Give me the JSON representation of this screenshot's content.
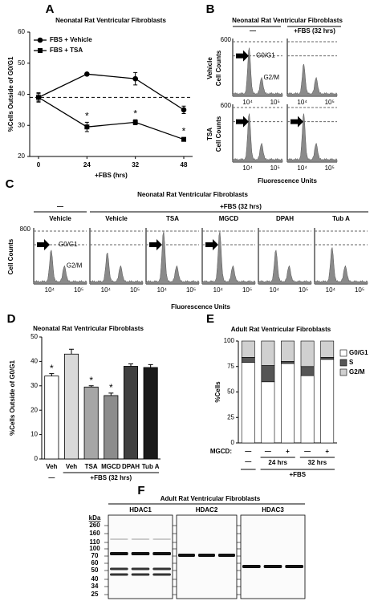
{
  "panel_labels": [
    "A",
    "B",
    "C",
    "D",
    "E",
    "F"
  ],
  "chart_data": [
    {
      "type": "line",
      "title": "Neonatal Rat Ventricular Fibroblasts",
      "categories": [
        "0",
        "24",
        "32",
        "48"
      ],
      "xlabel": "+FBS (hrs)",
      "ylabel": "%Cells Outside of G0/G1",
      "series": [
        {
          "name": "FBS + Vehicle",
          "color": "#000000",
          "marker": "circle",
          "values": [
            39,
            46.5,
            45,
            35
          ],
          "errors": [
            1.2,
            0,
            2,
            1.2
          ]
        },
        {
          "name": "FBS + TSA",
          "color": "#000000",
          "marker": "square",
          "values": [
            39,
            29.5,
            31,
            25.5
          ],
          "errors": [
            1.5,
            1.5,
            0.8,
            0.6
          ]
        }
      ],
      "ylim": [
        20,
        60
      ],
      "yticks": [
        20,
        30,
        40,
        50,
        60
      ],
      "reference_line": 39,
      "annotations": [
        "*",
        "*",
        "*"
      ]
    },
    {
      "type": "bar",
      "title": "Neonatal Rat Ventricular Fibroblasts",
      "categories": [
        "Veh",
        "Veh",
        "TSA",
        "MGCD",
        "DPAH",
        "Tub A"
      ],
      "values": [
        34,
        43,
        29.5,
        26,
        38,
        37.5
      ],
      "errors": [
        1,
        2,
        0.5,
        1,
        1,
        1.2
      ],
      "colors": [
        "#ffffff",
        "#d9d9d9",
        "#a6a6a6",
        "#8c8c8c",
        "#404040",
        "#1a1a1a"
      ],
      "ylabel": "%Cells Outside of G0/G1",
      "ylim": [
        0,
        50
      ],
      "yticks": [
        0,
        10,
        20,
        30,
        40,
        50
      ],
      "group_labels": [
        "—",
        "+FBS (32 hrs)"
      ],
      "annotations": [
        "*",
        "*",
        "*"
      ]
    },
    {
      "type": "stacked_bar",
      "title": "Adult Rat Ventricular Fibroblasts",
      "category_label": "MGCD:",
      "categories": [
        "—",
        "—",
        "+",
        "—",
        "+"
      ],
      "time_labels": [
        "24 hrs",
        "32 hrs"
      ],
      "group_labels": [
        "—",
        "+FBS"
      ],
      "ylabel": "%Cells",
      "ylim": [
        0,
        100
      ],
      "yticks": [
        0,
        25,
        50,
        75,
        100
      ],
      "series": [
        {
          "name": "G0/G1",
          "color": "#ffffff",
          "values": [
            79,
            60,
            78,
            66,
            82
          ]
        },
        {
          "name": "S",
          "color": "#555555",
          "values": [
            5,
            16,
            2,
            9,
            2
          ]
        },
        {
          "name": "G2/M",
          "color": "#d0d0d0",
          "values": [
            16,
            24,
            20,
            25,
            16
          ]
        }
      ]
    }
  ],
  "panel_b": {
    "title": "Neonatal Rat Ventricular Fibroblasts",
    "column_headers": [
      "—",
      "+FBS (32 hrs)"
    ],
    "row_labels": [
      "Vehicle",
      "TSA"
    ],
    "ylabel": "Cell Counts",
    "yticks": [
      600
    ],
    "xticks": [
      {
        "value": 10000,
        "label": "10⁴"
      },
      {
        "value": 100000,
        "label": "10⁵"
      }
    ],
    "xlabel": "Fluorescence Units",
    "phase_labels": [
      "G0/G1",
      "G2/M"
    ]
  },
  "panel_c": {
    "title": "Neonatal Rat Ventricular Fibroblasts",
    "group_labels": [
      "—",
      "+FBS (32 hrs)"
    ],
    "treatments": [
      "Vehicle",
      "Vehicle",
      "TSA",
      "MGCD",
      "DPAH",
      "Tub A"
    ],
    "ylabel": "Cell Counts",
    "yticks": [
      800
    ],
    "xticks": [
      {
        "value": 10000,
        "label": "10⁴"
      },
      {
        "value": 100000,
        "label": "10⁵"
      }
    ],
    "xlabel": "Fluorescence Units",
    "phase_labels": [
      "G0/G1",
      "G2/M"
    ]
  },
  "panel_f": {
    "title": "Adult Rat Ventricular Fibroblasts",
    "lanes": [
      "HDAC1",
      "HDAC2",
      "HDAC3"
    ],
    "unit": "kDa",
    "markers": [
      260,
      160,
      110,
      100,
      70,
      60,
      50,
      40,
      34,
      25
    ]
  }
}
